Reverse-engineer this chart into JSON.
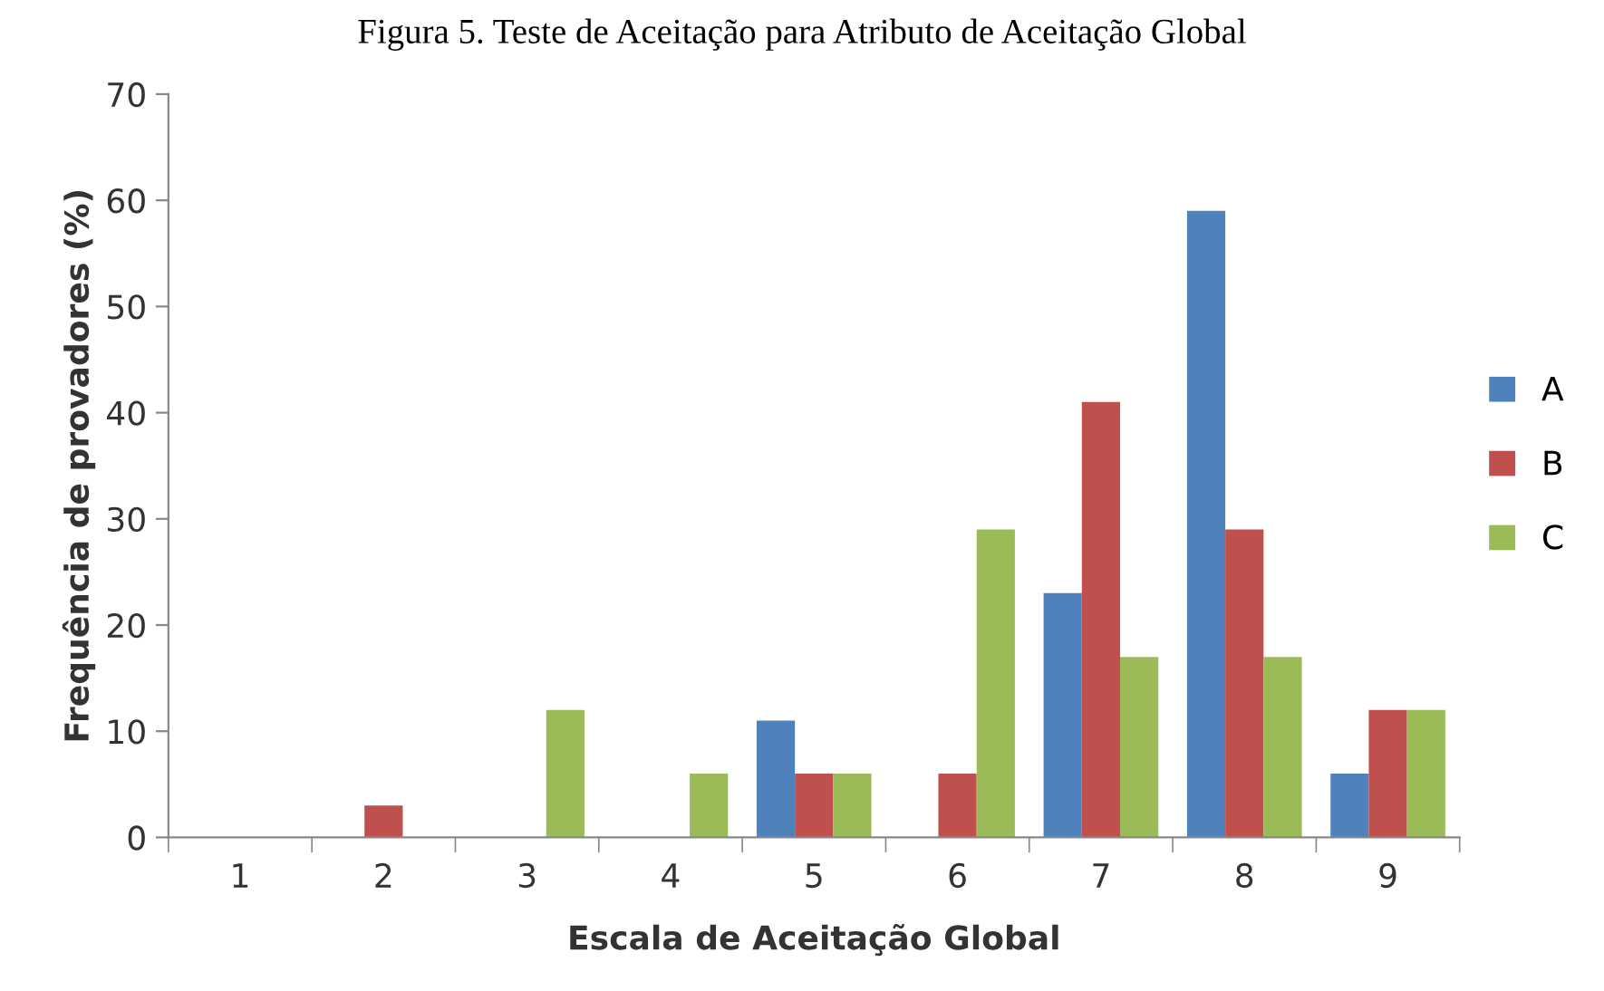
{
  "chart_data": {
    "type": "bar",
    "title": "Figura 5. Teste de Aceitação para Atributo de Aceitação Global",
    "xlabel": "Escala de Aceitação Global",
    "ylabel": "Frequência de provadores (%)",
    "categories": [
      "1",
      "2",
      "3",
      "4",
      "5",
      "6",
      "7",
      "8",
      "9"
    ],
    "series": [
      {
        "name": "A",
        "color": "#4f81bd",
        "values": [
          0,
          0,
          0,
          0,
          11,
          0,
          23,
          59,
          6
        ]
      },
      {
        "name": "B",
        "color": "#c0504d",
        "values": [
          0,
          3,
          0,
          0,
          6,
          6,
          41,
          29,
          12
        ]
      },
      {
        "name": "C",
        "color": "#9bbb59",
        "values": [
          0,
          0,
          12,
          6,
          6,
          29,
          17,
          17,
          12
        ]
      }
    ],
    "ylim": [
      0,
      70
    ],
    "yticks": [
      0,
      10,
      20,
      30,
      40,
      50,
      60,
      70
    ],
    "grid": false,
    "legend": "right"
  }
}
